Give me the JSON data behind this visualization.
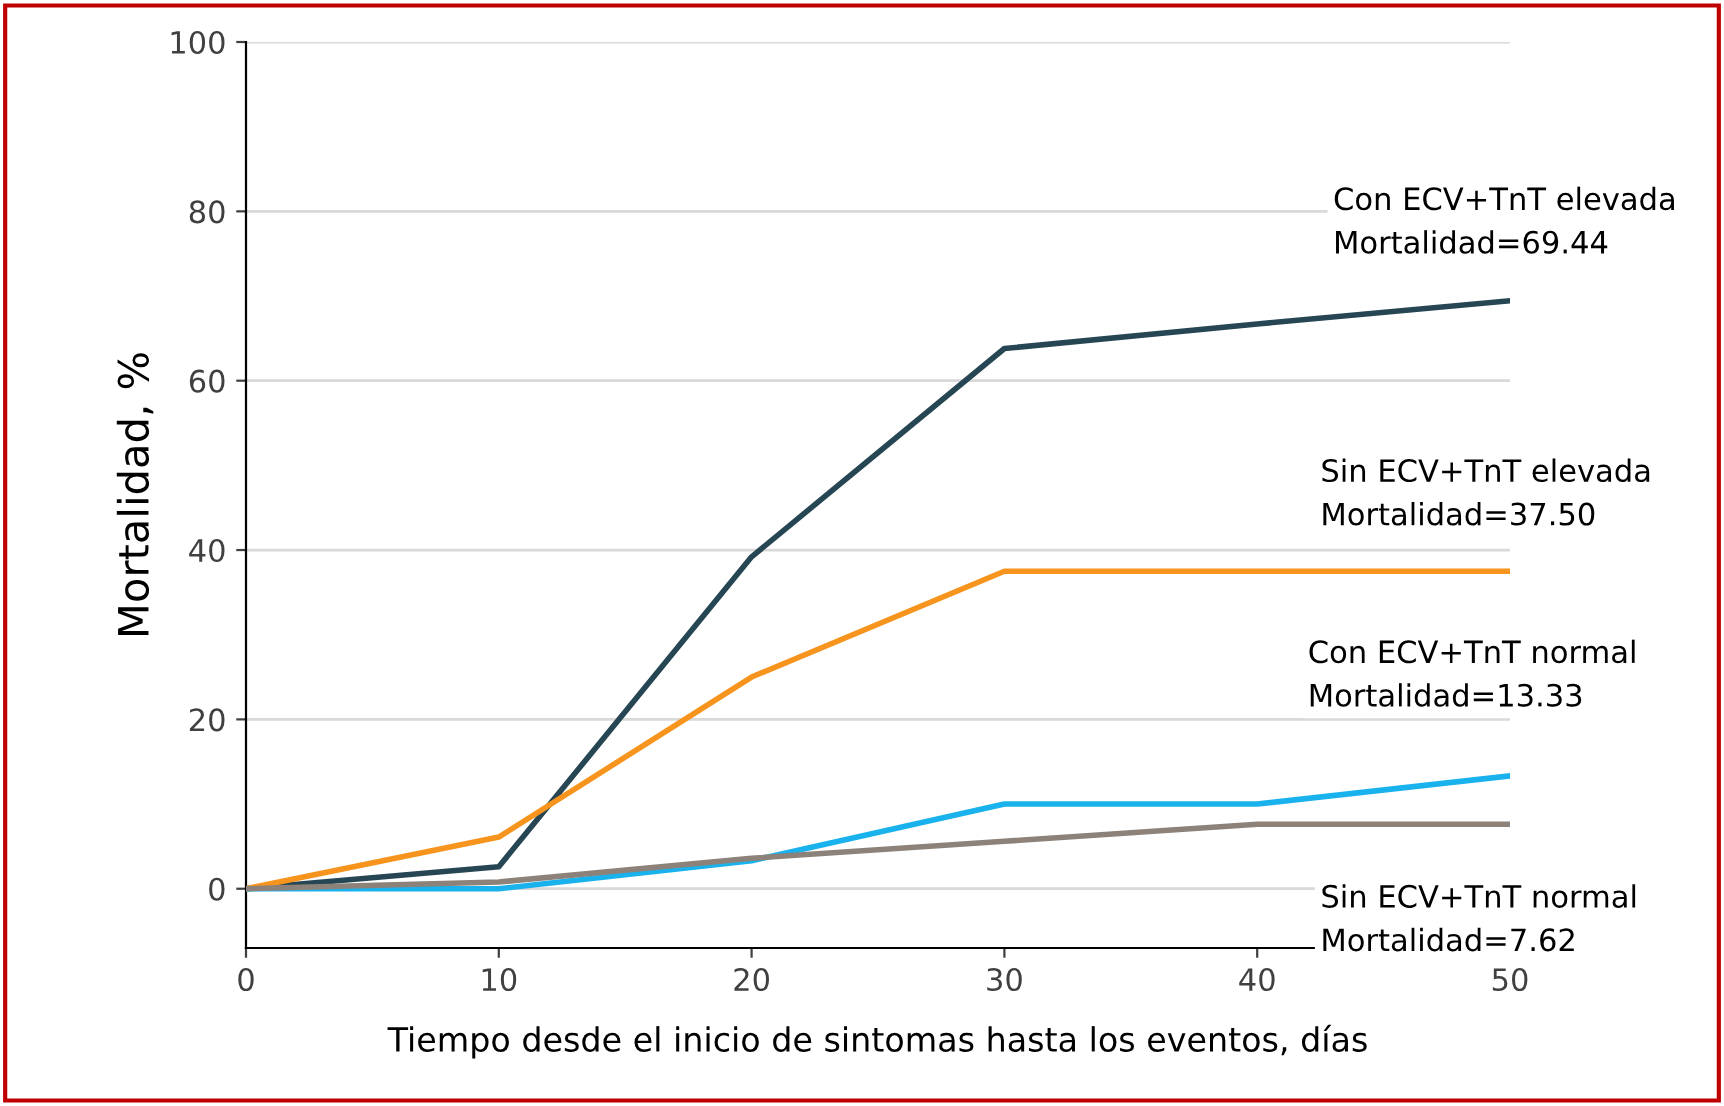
{
  "chart_data": {
    "type": "line",
    "xlabel": "Tiempo desde el inicio de sintomas hasta los eventos, días",
    "ylabel": "Mortalidad, %",
    "x": [
      0,
      10,
      20,
      30,
      40,
      50
    ],
    "series": [
      {
        "color": "#264653",
        "values": [
          0,
          2.6,
          39.2,
          63.8,
          66.7,
          69.44
        ]
      },
      {
        "color": "#f7941d",
        "values": [
          0,
          6.1,
          25.0,
          37.5,
          37.5,
          37.5
        ]
      },
      {
        "color": "#1ab2ec",
        "values": [
          0,
          0,
          3.3,
          10,
          10,
          13.33
        ]
      },
      {
        "color": "#8c8279",
        "values": [
          0,
          0.8,
          3.6,
          5.6,
          7.62,
          7.62
        ]
      }
    ],
    "annotations": [
      "Con ECV+TnT elevada\nMortalidad=69.44",
      "Sin ECV+TnT elevada\nMortalidad=37.50",
      "Con ECV+TnT normal\nMortalidad=13.33",
      "Sin ECV+TnT normal\nMortalidad=7.62"
    ],
    "xlim": [
      0,
      50
    ],
    "ylim": [
      -7,
      100
    ],
    "xticks": [
      0,
      10,
      20,
      30,
      40,
      50
    ],
    "yticks": [
      0,
      20,
      40,
      60,
      80,
      100
    ],
    "grid": "y",
    "marker": "none",
    "line_style": "solid",
    "legend": false
  }
}
